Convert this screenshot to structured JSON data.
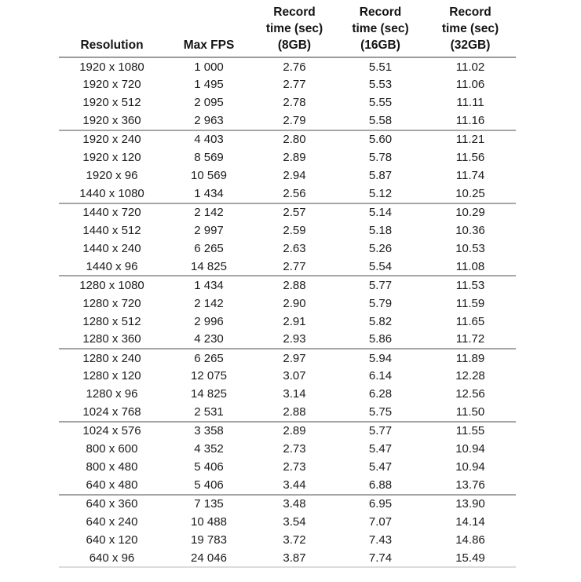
{
  "table": {
    "columns": [
      {
        "label": "Resolution"
      },
      {
        "label": "Max FPS"
      },
      {
        "label": "Record\ntime (sec)\n(8GB)"
      },
      {
        "label": "Record\ntime (sec)\n(16GB)"
      },
      {
        "label": "Record\ntime (sec)\n(32GB)"
      }
    ],
    "group_size": 4,
    "rows": [
      [
        "1920 x 1080",
        "1 000",
        "2.76",
        "5.51",
        "11.02"
      ],
      [
        "1920 x 720",
        "1 495",
        "2.77",
        "5.53",
        "11.06"
      ],
      [
        "1920 x 512",
        "2 095",
        "2.78",
        "5.55",
        "11.11"
      ],
      [
        "1920 x 360",
        "2 963",
        "2.79",
        "5.58",
        "11.16"
      ],
      [
        "1920 x 240",
        "4 403",
        "2.80",
        "5.60",
        "11.21"
      ],
      [
        "1920 x 120",
        "8 569",
        "2.89",
        "5.78",
        "11.56"
      ],
      [
        "1920 x 96",
        "10 569",
        "2.94",
        "5.87",
        "11.74"
      ],
      [
        "1440 x 1080",
        "1 434",
        "2.56",
        "5.12",
        "10.25"
      ],
      [
        "1440 x 720",
        "2 142",
        "2.57",
        "5.14",
        "10.29"
      ],
      [
        "1440 x 512",
        "2 997",
        "2.59",
        "5.18",
        "10.36"
      ],
      [
        "1440 x 240",
        "6 265",
        "2.63",
        "5.26",
        "10.53"
      ],
      [
        "1440 x 96",
        "14 825",
        "2.77",
        "5.54",
        "11.08"
      ],
      [
        "1280 x 1080",
        "1 434",
        "2.88",
        "5.77",
        "11.53"
      ],
      [
        "1280 x 720",
        "2 142",
        "2.90",
        "5.79",
        "11.59"
      ],
      [
        "1280 x 512",
        "2 996",
        "2.91",
        "5.82",
        "11.65"
      ],
      [
        "1280 x 360",
        "4 230",
        "2.93",
        "5.86",
        "11.72"
      ],
      [
        "1280 x 240",
        "6 265",
        "2.97",
        "5.94",
        "11.89"
      ],
      [
        "1280 x 120",
        "12 075",
        "3.07",
        "6.14",
        "12.28"
      ],
      [
        "1280 x 96",
        "14 825",
        "3.14",
        "6.28",
        "12.56"
      ],
      [
        "1024 x 768",
        "2 531",
        "2.88",
        "5.75",
        "11.50"
      ],
      [
        "1024 x 576",
        "3 358",
        "2.89",
        "5.77",
        "11.55"
      ],
      [
        "800 x 600",
        "4 352",
        "2.73",
        "5.47",
        "10.94"
      ],
      [
        "800 x 480",
        "5 406",
        "2.73",
        "5.47",
        "10.94"
      ],
      [
        "640 x 480",
        "5 406",
        "3.44",
        "6.88",
        "13.76"
      ],
      [
        "640 x 360",
        "7 135",
        "3.48",
        "6.95",
        "13.90"
      ],
      [
        "640 x 240",
        "10 488",
        "3.54",
        "7.07",
        "14.14"
      ],
      [
        "640 x 120",
        "19 783",
        "3.72",
        "7.43",
        "14.86"
      ],
      [
        "640 x 96",
        "24 046",
        "3.87",
        "7.74",
        "15.49"
      ]
    ]
  },
  "colors": {
    "text": "#1b1b1b",
    "header_rule": "#9b9b9b",
    "group_rule": "#a6a6a6",
    "bottom_rule": "#dcdcdc",
    "background": "#ffffff"
  }
}
